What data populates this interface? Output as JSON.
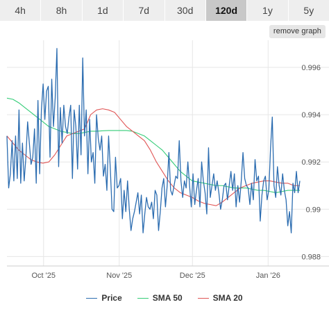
{
  "ranges": {
    "tabs": [
      {
        "label": "4h",
        "name": "tab-4h"
      },
      {
        "label": "8h",
        "name": "tab-8h"
      },
      {
        "label": "1d",
        "name": "tab-1d"
      },
      {
        "label": "7d",
        "name": "tab-7d"
      },
      {
        "label": "30d",
        "name": "tab-30d"
      },
      {
        "label": "120d",
        "name": "tab-120d",
        "active": true
      },
      {
        "label": "1y",
        "name": "tab-1y"
      },
      {
        "label": "5y",
        "name": "tab-5y"
      }
    ]
  },
  "toolbar": {
    "remove_label": "remove graph"
  },
  "colors": {
    "price": "#2b6cb0",
    "sma50": "#33cc77",
    "sma20": "#e05555",
    "grid": "#e6e6e6"
  },
  "chart_data": {
    "type": "line",
    "title": "",
    "xlabel": "",
    "ylabel": "",
    "x_ticks": [
      "Oct '25",
      "Nov '25",
      "Dec '25",
      "Jan '26"
    ],
    "y_ticks": [
      0.988,
      0.99,
      0.992,
      0.994,
      0.996
    ],
    "ylim": [
      0.9876,
      0.997
    ],
    "grid": true,
    "y_axis_side": "right",
    "legend_position": "bottom",
    "x_start": "2025-09-16",
    "x_end": "2026-01-14",
    "series": [
      {
        "name": "Price",
        "color": "#2b6cb0",
        "values": [
          0.9931,
          0.9909,
          0.9915,
          0.9929,
          0.9912,
          0.9931,
          0.9913,
          0.9942,
          0.9911,
          0.9928,
          0.9912,
          0.9922,
          0.9937,
          0.9928,
          0.9919,
          0.9922,
          0.9934,
          0.9911,
          0.9946,
          0.9915,
          0.9942,
          0.9953,
          0.9938,
          0.995,
          0.9952,
          0.9922,
          0.9955,
          0.9935,
          0.9947,
          0.9968,
          0.9918,
          0.9943,
          0.9928,
          0.9944,
          0.9935,
          0.9932,
          0.9939,
          0.9944,
          0.9913,
          0.9942,
          0.9935,
          0.9917,
          0.9944,
          0.9923,
          0.9964,
          0.9931,
          0.9942,
          0.9915,
          0.9938,
          0.992,
          0.9924,
          0.9911,
          0.994,
          0.993,
          0.9925,
          0.9931,
          0.9914,
          0.9919,
          0.9908,
          0.9931,
          0.9917,
          0.99,
          0.9899,
          0.9922,
          0.9909,
          0.991,
          0.9913,
          0.9896,
          0.9908,
          0.9899,
          0.9912,
          0.99,
          0.9891,
          0.9896,
          0.9899,
          0.9903,
          0.9907,
          0.9898,
          0.9906,
          0.989,
          0.9898,
          0.9905,
          0.9901,
          0.99,
          0.9903,
          0.9896,
          0.9908,
          0.9906,
          0.9891,
          0.9899,
          0.9909,
          0.9913,
          0.9901,
          0.991,
          0.9924,
          0.9908,
          0.9906,
          0.991,
          0.9914,
          0.9913,
          0.9929,
          0.9912,
          0.9905,
          0.9912,
          0.9909,
          0.992,
          0.991,
          0.9901,
          0.9915,
          0.9902,
          0.9908,
          0.9913,
          0.9901,
          0.992,
          0.9912,
          0.9907,
          0.9898,
          0.9926,
          0.9905,
          0.991,
          0.9915,
          0.9908,
          0.9912,
          0.9907,
          0.99,
          0.9904,
          0.991,
          0.9911,
          0.9904,
          0.991,
          0.9916,
          0.9908,
          0.9915,
          0.9901,
          0.991,
          0.9903,
          0.9912,
          0.9924,
          0.9913,
          0.991,
          0.9909,
          0.9902,
          0.9911,
          0.9904,
          0.9921,
          0.9912,
          0.9914,
          0.9895,
          0.9906,
          0.9912,
          0.9914,
          0.9904,
          0.9908,
          0.9926,
          0.9939,
          0.991,
          0.9905,
          0.9918,
          0.991,
          0.9906,
          0.9915,
          0.9908,
          0.9904,
          0.9893,
          0.9899,
          0.989,
          0.9911,
          0.9907,
          0.9916,
          0.9907,
          0.9912
        ]
      },
      {
        "name": "SMA 50",
        "color": "#33cc77",
        "values": [
          0.9947,
          0.99465,
          0.9945,
          0.9943,
          0.9941,
          0.9939,
          0.9937,
          0.9935,
          0.9934,
          0.9933,
          0.99325,
          0.9932,
          0.9932,
          0.99325,
          0.9933,
          0.9933,
          0.99332,
          0.99333,
          0.99333,
          0.99333,
          0.99333,
          0.9933,
          0.9932,
          0.9931,
          0.9929,
          0.9927,
          0.9925,
          0.9922,
          0.9919,
          0.9916,
          0.9914,
          0.9912,
          0.99115,
          0.9911,
          0.99105,
          0.991,
          0.991,
          0.99095,
          0.9909,
          0.9909,
          0.9909,
          0.99085,
          0.9908,
          0.9908,
          0.99075,
          0.9907,
          0.99075,
          0.9908,
          0.9908,
          0.9908
        ]
      },
      {
        "name": "SMA 20",
        "color": "#e05555",
        "values": [
          0.9931,
          0.9928,
          0.9925,
          0.9923,
          0.9921,
          0.992,
          0.99195,
          0.992,
          0.9923,
          0.9927,
          0.9931,
          0.9932,
          0.9933,
          0.9934,
          0.994,
          0.9942,
          0.99425,
          0.9942,
          0.9941,
          0.9938,
          0.9935,
          0.9933,
          0.9931,
          0.9929,
          0.9925,
          0.992,
          0.9916,
          0.9912,
          0.9909,
          0.9907,
          0.9906,
          0.9905,
          0.99035,
          0.99025,
          0.9902,
          0.99015,
          0.9903,
          0.9905,
          0.9907,
          0.9909,
          0.991,
          0.9911,
          0.99115,
          0.9912,
          0.9912,
          0.99115,
          0.9911,
          0.9911,
          0.991,
          0.991
        ]
      }
    ]
  }
}
